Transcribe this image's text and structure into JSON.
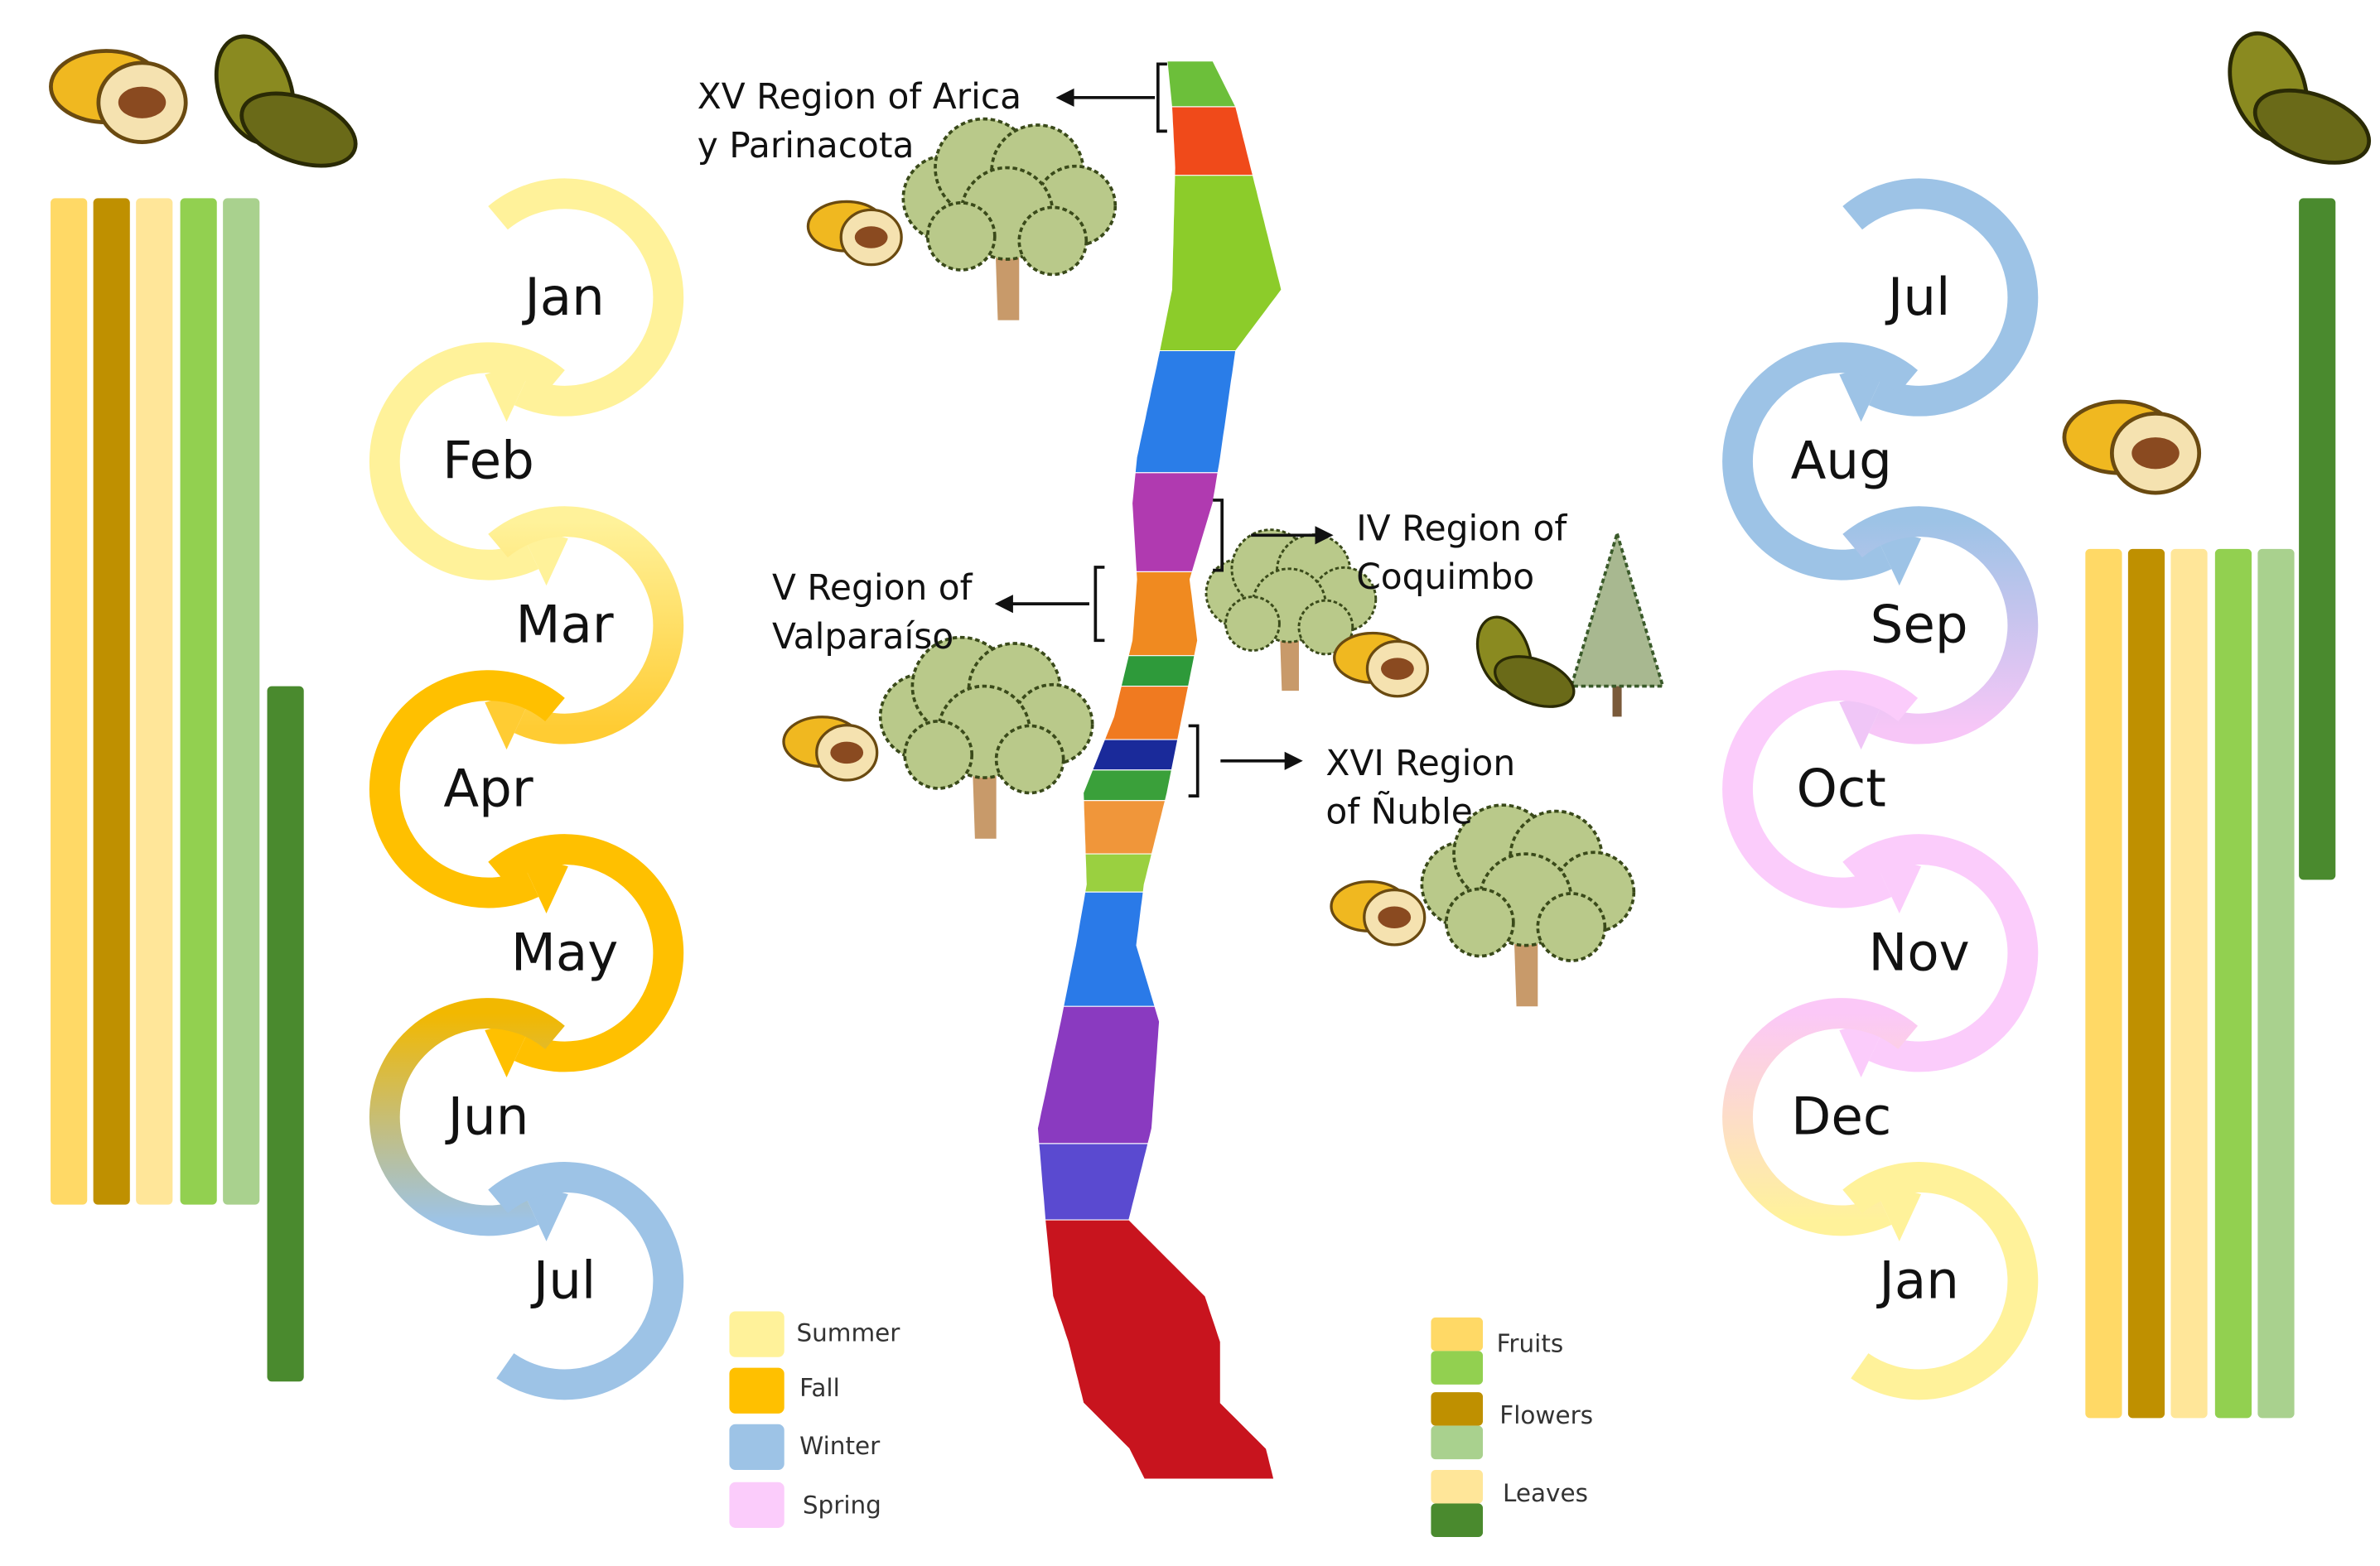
{
  "left_months": [
    "Jan",
    "Feb",
    "Mar",
    "Apr",
    "May",
    "Jun",
    "Jul"
  ],
  "right_months": [
    "Jul",
    "Aug",
    "Sep",
    "Oct",
    "Nov",
    "Dec",
    "Jan"
  ],
  "regions": [
    {
      "lines": [
        "XV Region of Arica",
        "y Parinacota"
      ]
    },
    {
      "lines": [
        "IV Region of",
        "Coquimbo"
      ]
    },
    {
      "lines": [
        "V Region of",
        "Valparaíso"
      ]
    },
    {
      "lines": [
        "XVI Region",
        "of Ñuble"
      ]
    }
  ],
  "season_legend": [
    "Summer",
    "Fall",
    "Winter",
    "Spring"
  ],
  "organ_legend": [
    "Fruits",
    "Flowers",
    "Leaves"
  ]
}
